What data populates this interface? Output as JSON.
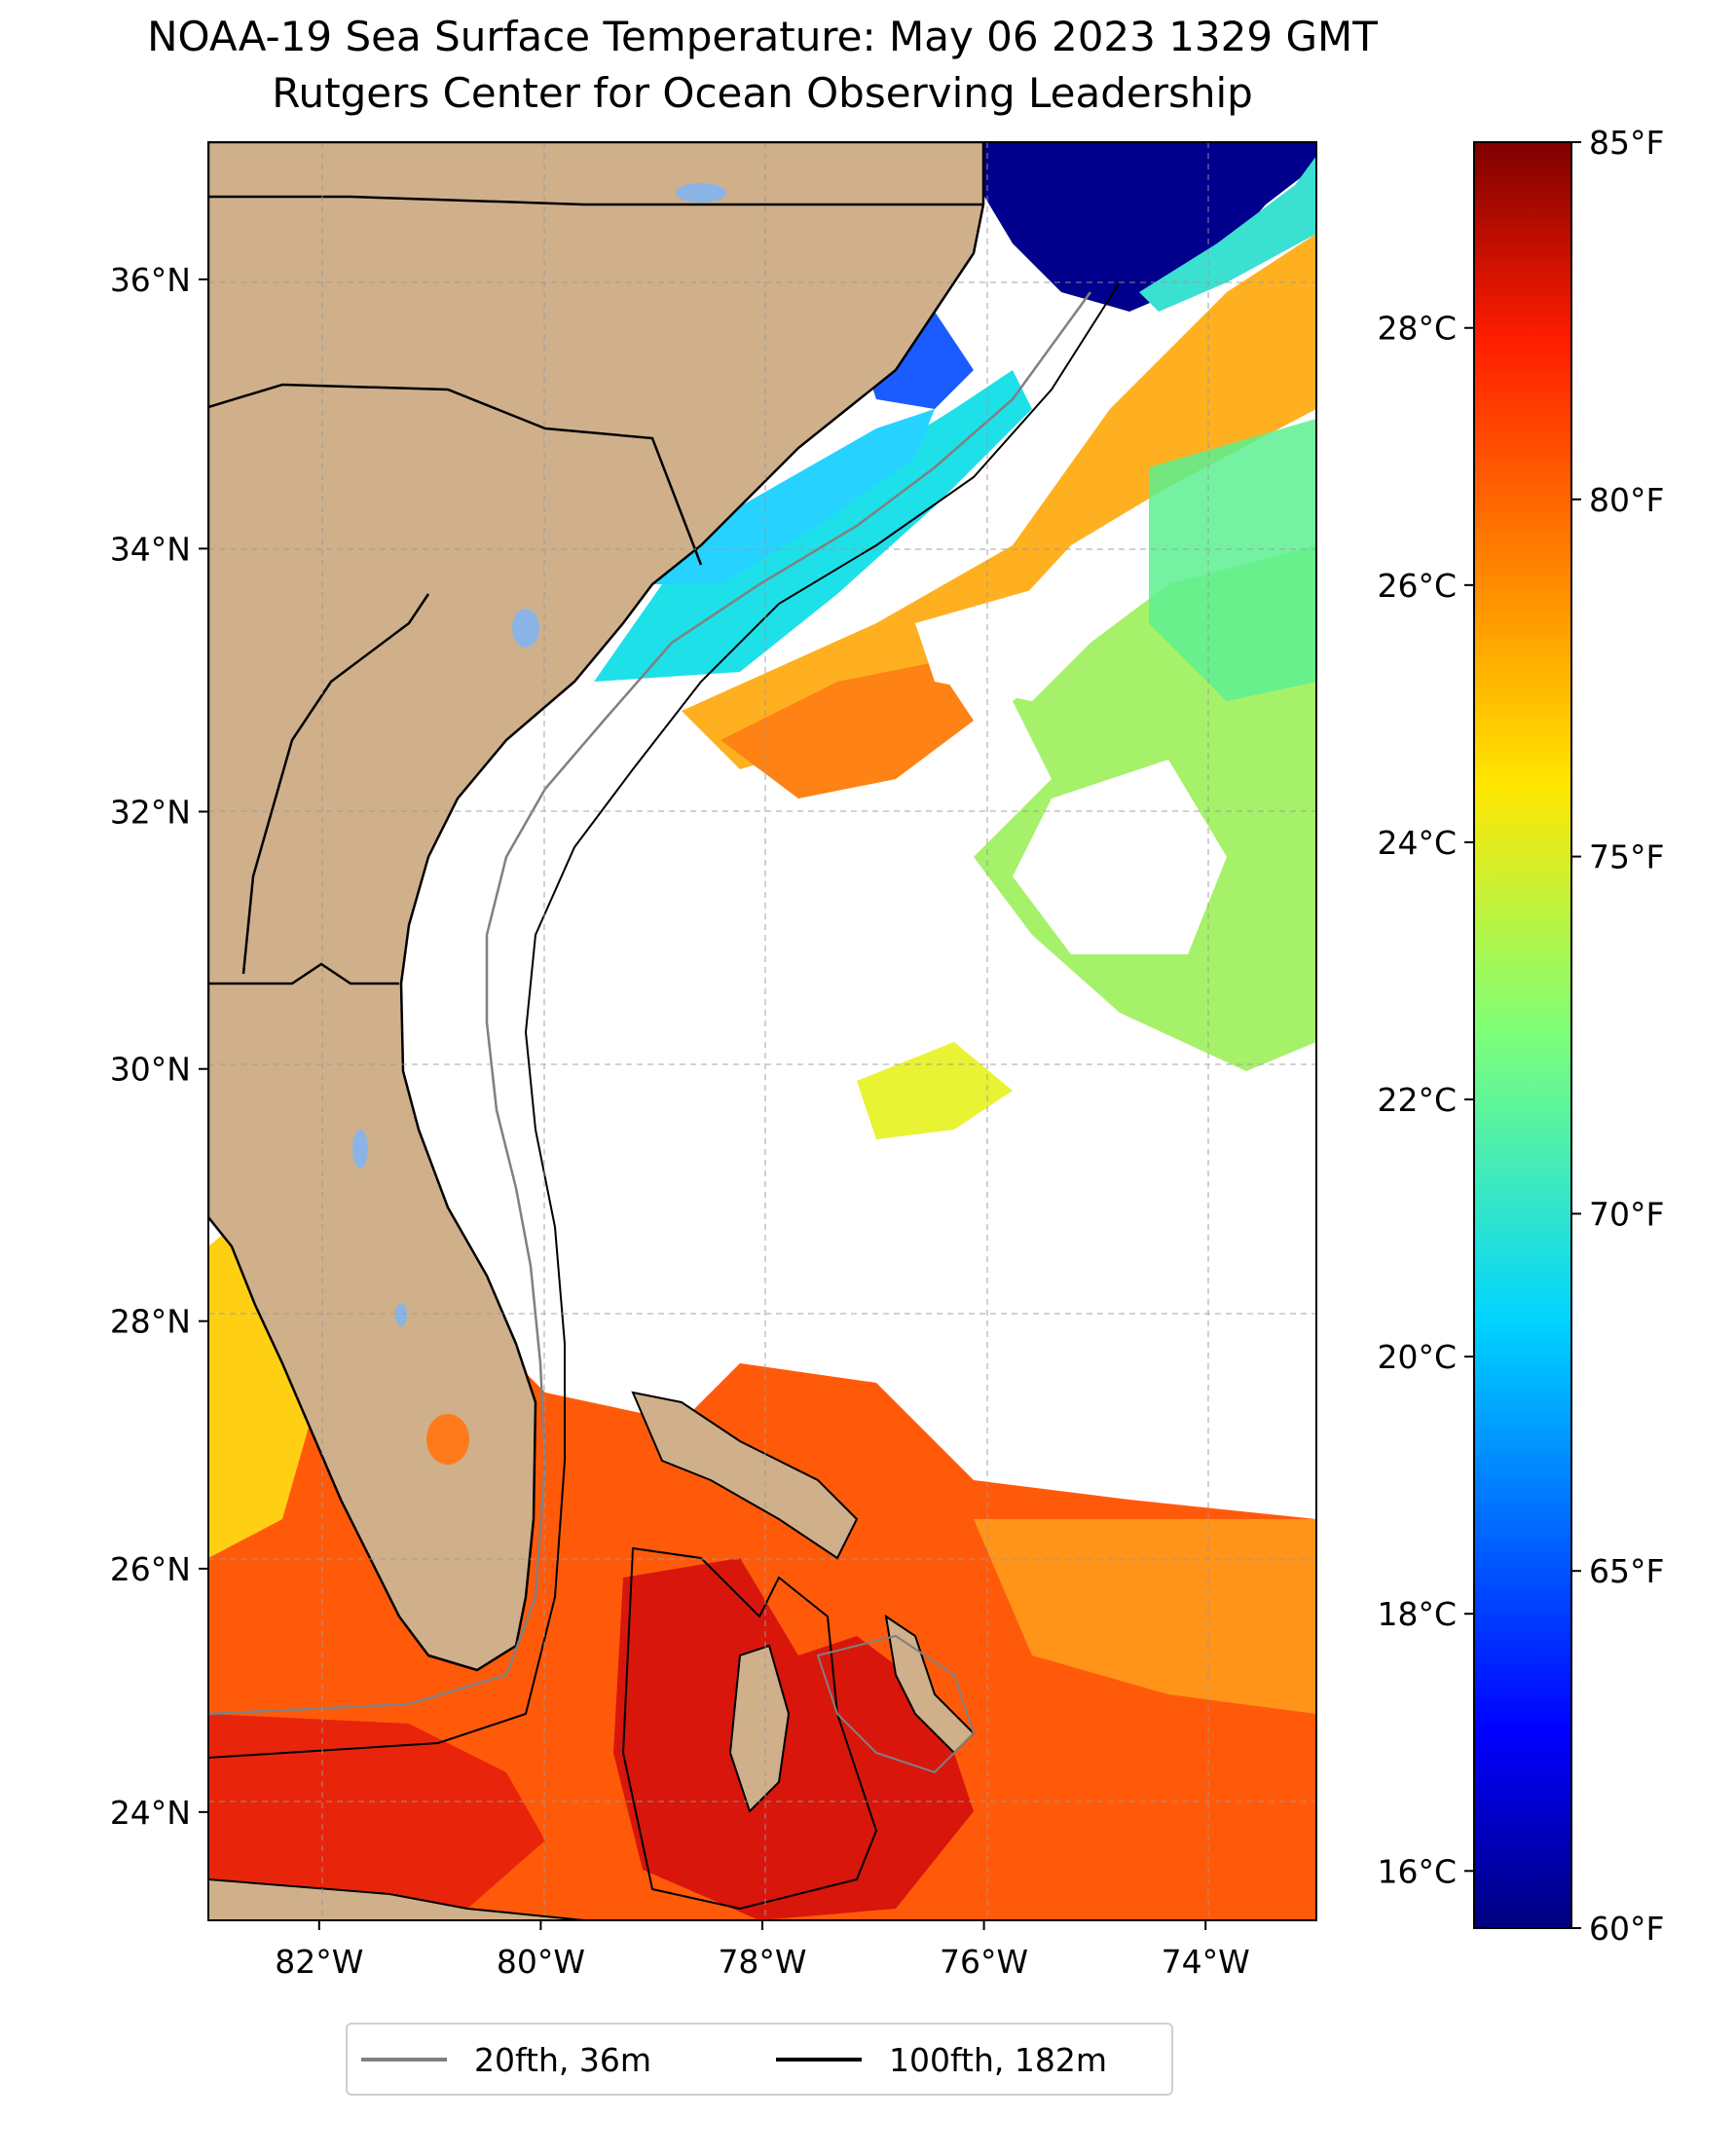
{
  "title": {
    "line1": "NOAA-19 Sea Surface Temperature: May 06 2023 1329 GMT",
    "line2": "Rutgers Center for Ocean Observing Leadership"
  },
  "map": {
    "lon_range": [
      -83,
      -73
    ],
    "lat_range": [
      23.1,
      37.0
    ],
    "land_color": "#cfb08a",
    "missing_color": "#ffffff",
    "grid": "dashed gray",
    "lon_ticks": [
      {
        "value": -82,
        "label": "82°W"
      },
      {
        "value": -80,
        "label": "80°W"
      },
      {
        "value": -78,
        "label": "78°W"
      },
      {
        "value": -76,
        "label": "76°W"
      },
      {
        "value": -74,
        "label": "74°W"
      }
    ],
    "lat_ticks": [
      {
        "value": 24,
        "label": "24°N"
      },
      {
        "value": 26,
        "label": "26°N"
      },
      {
        "value": 28,
        "label": "28°N"
      },
      {
        "value": 30,
        "label": "30°N"
      },
      {
        "value": 32,
        "label": "32°N"
      },
      {
        "value": 34,
        "label": "34°N"
      },
      {
        "value": 36,
        "label": "36°N"
      }
    ]
  },
  "colorbar": {
    "colormap": "jet",
    "range_f": [
      60,
      85
    ],
    "fahrenheit_ticks": [
      {
        "value": 60,
        "label": "60°F"
      },
      {
        "value": 65,
        "label": "65°F"
      },
      {
        "value": 70,
        "label": "70°F"
      },
      {
        "value": 75,
        "label": "75°F"
      },
      {
        "value": 80,
        "label": "80°F"
      },
      {
        "value": 85,
        "label": "85°F"
      }
    ],
    "celsius_ticks": [
      {
        "value": 16,
        "label": "16°C"
      },
      {
        "value": 18,
        "label": "18°C"
      },
      {
        "value": 20,
        "label": "20°C"
      },
      {
        "value": 22,
        "label": "22°C"
      },
      {
        "value": 24,
        "label": "24°C"
      },
      {
        "value": 26,
        "label": "26°C"
      },
      {
        "value": 28,
        "label": "28°C"
      }
    ]
  },
  "legend": {
    "items": [
      {
        "label": "20fth, 36m",
        "color": "#808080"
      },
      {
        "label": "100fth, 182m",
        "color": "#000000"
      }
    ]
  }
}
